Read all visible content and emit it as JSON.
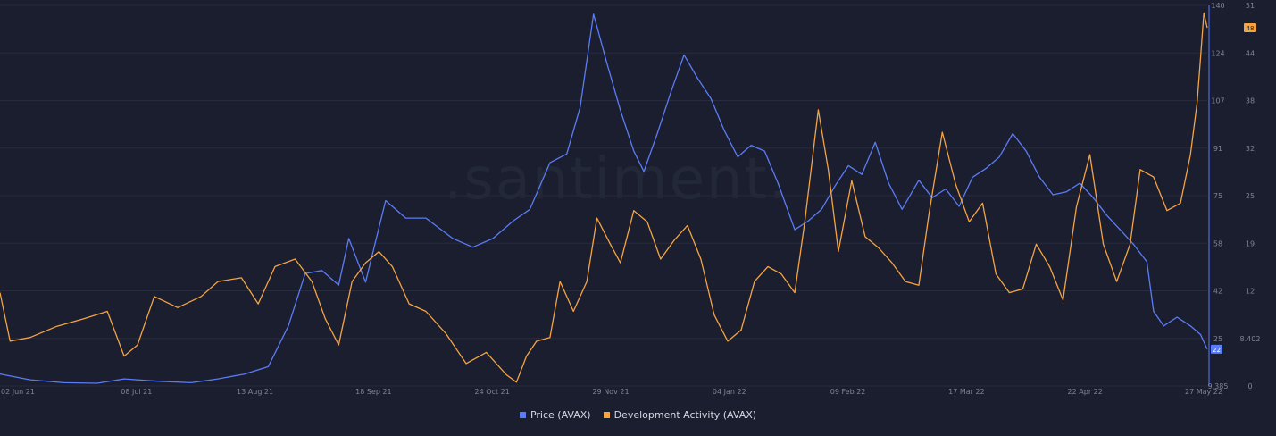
{
  "chart_data": {
    "type": "line",
    "watermark": ".santiment.",
    "x_ticks": [
      "02 Jun 21",
      "08 Jul 21",
      "13 Aug 21",
      "18 Sep 21",
      "24 Oct 21",
      "29 Nov 21",
      "04 Jan 22",
      "09 Feb 22",
      "17 Mar 22",
      "22 Apr 22",
      "27 May 22"
    ],
    "x_range": [
      "2021-06-01",
      "2022-05-27"
    ],
    "y_price": {
      "ticks": [
        "140",
        "124",
        "107",
        "91",
        "75",
        "58",
        "42",
        "25",
        "9.385"
      ],
      "range": [
        9.385,
        140
      ],
      "current_label": "22"
    },
    "y_dev": {
      "ticks": [
        "51",
        "44",
        "38",
        "32",
        "25",
        "19",
        "12",
        "8.402",
        "0"
      ],
      "range": [
        0,
        51
      ],
      "current_label": "48"
    },
    "grid": true,
    "legend_position": "bottom-center",
    "series": [
      {
        "name": "Price (AVAX)",
        "axis": "left",
        "color": "#5b7cf7",
        "points": [
          [
            "2021-06-01",
            13.5
          ],
          [
            "2021-06-10",
            11.5
          ],
          [
            "2021-06-20",
            10.5
          ],
          [
            "2021-06-30",
            10.3
          ],
          [
            "2021-07-08",
            11.8
          ],
          [
            "2021-07-18",
            11.0
          ],
          [
            "2021-07-28",
            10.5
          ],
          [
            "2021-08-05",
            11.8
          ],
          [
            "2021-08-13",
            13.5
          ],
          [
            "2021-08-20",
            16.0
          ],
          [
            "2021-08-26",
            30.0
          ],
          [
            "2021-08-31",
            48.0
          ],
          [
            "2021-09-05",
            49.0
          ],
          [
            "2021-09-10",
            44.0
          ],
          [
            "2021-09-13",
            60.0
          ],
          [
            "2021-09-18",
            45.0
          ],
          [
            "2021-09-24",
            73.0
          ],
          [
            "2021-09-30",
            67.0
          ],
          [
            "2021-10-06",
            67.0
          ],
          [
            "2021-10-14",
            60.0
          ],
          [
            "2021-10-20",
            57.0
          ],
          [
            "2021-10-26",
            60.0
          ],
          [
            "2021-11-01",
            66.0
          ],
          [
            "2021-11-06",
            70.0
          ],
          [
            "2021-11-12",
            86.0
          ],
          [
            "2021-11-17",
            89.0
          ],
          [
            "2021-11-21",
            105.0
          ],
          [
            "2021-11-25",
            137.0
          ],
          [
            "2021-11-29",
            120.0
          ],
          [
            "2021-12-03",
            104.0
          ],
          [
            "2021-12-07",
            90.0
          ],
          [
            "2021-12-10",
            83.0
          ],
          [
            "2021-12-14",
            96.0
          ],
          [
            "2021-12-18",
            110.0
          ],
          [
            "2021-12-22",
            123.0
          ],
          [
            "2021-12-26",
            115.0
          ],
          [
            "2021-12-30",
            108.0
          ],
          [
            "2022-01-03",
            97.0
          ],
          [
            "2022-01-07",
            88.0
          ],
          [
            "2022-01-11",
            92.0
          ],
          [
            "2022-01-15",
            90.0
          ],
          [
            "2022-01-19",
            79.0
          ],
          [
            "2022-01-24",
            63.0
          ],
          [
            "2022-01-28",
            66.0
          ],
          [
            "2022-02-01",
            70.0
          ],
          [
            "2022-02-05",
            78.0
          ],
          [
            "2022-02-09",
            85.0
          ],
          [
            "2022-02-13",
            82.0
          ],
          [
            "2022-02-17",
            93.0
          ],
          [
            "2022-02-21",
            79.0
          ],
          [
            "2022-02-25",
            70.0
          ],
          [
            "2022-03-02",
            80.0
          ],
          [
            "2022-03-06",
            74.0
          ],
          [
            "2022-03-10",
            77.0
          ],
          [
            "2022-03-14",
            71.0
          ],
          [
            "2022-03-18",
            81.0
          ],
          [
            "2022-03-22",
            84.0
          ],
          [
            "2022-03-26",
            88.0
          ],
          [
            "2022-03-30",
            96.0
          ],
          [
            "2022-04-03",
            90.0
          ],
          [
            "2022-04-07",
            81.0
          ],
          [
            "2022-04-11",
            75.0
          ],
          [
            "2022-04-15",
            76.0
          ],
          [
            "2022-04-19",
            79.0
          ],
          [
            "2022-04-23",
            74.0
          ],
          [
            "2022-04-27",
            68.0
          ],
          [
            "2022-05-01",
            63.0
          ],
          [
            "2022-05-05",
            58.0
          ],
          [
            "2022-05-09",
            52.0
          ],
          [
            "2022-05-11",
            35.0
          ],
          [
            "2022-05-14",
            30.0
          ],
          [
            "2022-05-18",
            33.0
          ],
          [
            "2022-05-22",
            30.0
          ],
          [
            "2022-05-25",
            27.0
          ],
          [
            "2022-05-27",
            22.0
          ]
        ]
      },
      {
        "name": "Development Activity (AVAX)",
        "axis": "right",
        "color": "#f5a443",
        "points": [
          [
            "2021-06-01",
            12.5
          ],
          [
            "2021-06-04",
            6.0
          ],
          [
            "2021-06-10",
            6.5
          ],
          [
            "2021-06-18",
            8.0
          ],
          [
            "2021-06-26",
            9.0
          ],
          [
            "2021-07-03",
            10.0
          ],
          [
            "2021-07-08",
            4.0
          ],
          [
            "2021-07-12",
            5.5
          ],
          [
            "2021-07-17",
            12.0
          ],
          [
            "2021-07-24",
            10.5
          ],
          [
            "2021-07-31",
            12.0
          ],
          [
            "2021-08-05",
            14.0
          ],
          [
            "2021-08-12",
            14.5
          ],
          [
            "2021-08-17",
            11.0
          ],
          [
            "2021-08-22",
            16.0
          ],
          [
            "2021-08-28",
            17.0
          ],
          [
            "2021-09-02",
            14.0
          ],
          [
            "2021-09-06",
            9.0
          ],
          [
            "2021-09-10",
            5.5
          ],
          [
            "2021-09-14",
            14.0
          ],
          [
            "2021-09-18",
            16.5
          ],
          [
            "2021-09-22",
            18.0
          ],
          [
            "2021-09-26",
            16.0
          ],
          [
            "2021-10-01",
            11.0
          ],
          [
            "2021-10-06",
            10.0
          ],
          [
            "2021-10-12",
            7.0
          ],
          [
            "2021-10-18",
            3.0
          ],
          [
            "2021-10-24",
            4.5
          ],
          [
            "2021-10-30",
            1.5
          ],
          [
            "2021-11-02",
            0.5
          ],
          [
            "2021-11-05",
            4.0
          ],
          [
            "2021-11-08",
            6.0
          ],
          [
            "2021-11-12",
            6.5
          ],
          [
            "2021-11-15",
            14.0
          ],
          [
            "2021-11-19",
            10.0
          ],
          [
            "2021-11-23",
            14.0
          ],
          [
            "2021-11-26",
            22.5
          ],
          [
            "2021-11-30",
            19.0
          ],
          [
            "2021-12-03",
            16.5
          ],
          [
            "2021-12-07",
            23.5
          ],
          [
            "2021-12-11",
            22.0
          ],
          [
            "2021-12-15",
            17.0
          ],
          [
            "2021-12-19",
            19.5
          ],
          [
            "2021-12-23",
            21.5
          ],
          [
            "2021-12-27",
            17.0
          ],
          [
            "2021-12-31",
            9.5
          ],
          [
            "2022-01-04",
            6.0
          ],
          [
            "2022-01-08",
            7.5
          ],
          [
            "2022-01-12",
            14.0
          ],
          [
            "2022-01-16",
            16.0
          ],
          [
            "2022-01-20",
            15.0
          ],
          [
            "2022-01-24",
            12.5
          ],
          [
            "2022-01-27",
            22.0
          ],
          [
            "2022-01-31",
            37.0
          ],
          [
            "2022-02-03",
            29.0
          ],
          [
            "2022-02-06",
            18.0
          ],
          [
            "2022-02-10",
            27.5
          ],
          [
            "2022-02-14",
            20.0
          ],
          [
            "2022-02-18",
            18.5
          ],
          [
            "2022-02-22",
            16.5
          ],
          [
            "2022-02-26",
            14.0
          ],
          [
            "2022-03-02",
            13.5
          ],
          [
            "2022-03-05",
            23.0
          ],
          [
            "2022-03-09",
            34.0
          ],
          [
            "2022-03-13",
            27.0
          ],
          [
            "2022-03-17",
            22.0
          ],
          [
            "2022-03-21",
            24.5
          ],
          [
            "2022-03-25",
            15.0
          ],
          [
            "2022-03-29",
            12.5
          ],
          [
            "2022-04-02",
            13.0
          ],
          [
            "2022-04-06",
            19.0
          ],
          [
            "2022-04-10",
            16.0
          ],
          [
            "2022-04-14",
            11.5
          ],
          [
            "2022-04-18",
            24.0
          ],
          [
            "2022-04-22",
            31.0
          ],
          [
            "2022-04-26",
            19.0
          ],
          [
            "2022-04-30",
            14.0
          ],
          [
            "2022-05-04",
            19.0
          ],
          [
            "2022-05-07",
            29.0
          ],
          [
            "2022-05-11",
            28.0
          ],
          [
            "2022-05-15",
            23.5
          ],
          [
            "2022-05-19",
            24.5
          ],
          [
            "2022-05-22",
            31.0
          ],
          [
            "2022-05-24",
            38.0
          ],
          [
            "2022-05-25",
            44.0
          ],
          [
            "2022-05-26",
            50.0
          ],
          [
            "2022-05-27",
            48.0
          ]
        ]
      }
    ]
  }
}
